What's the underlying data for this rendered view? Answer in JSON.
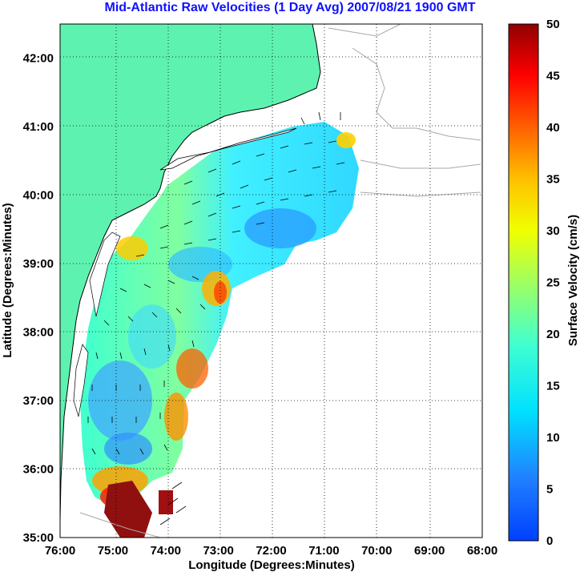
{
  "title": "Mid-Atlantic Raw Velocities (1 Day Avg) 2007/08/21 1900 GMT",
  "colors": {
    "title": "#1010ff",
    "land": "#5ef2b0",
    "coast_outline": "#000000",
    "bathymetry": "#a8a8a8",
    "grid": "#000000"
  },
  "map": {
    "xlabel": "Longitude (Degrees:Minutes)",
    "ylabel": "Latitude (Degrees:Minutes)",
    "lon_ticks": [
      "76:00",
      "75:00",
      "74:00",
      "73:00",
      "72:00",
      "71:00",
      "70:00",
      "69:00",
      "68:00"
    ],
    "lat_ticks": [
      "42:00",
      "41:00",
      "40:00",
      "39:00",
      "38:00",
      "37:00",
      "36:00",
      "35:00"
    ],
    "lon_range": [
      -76,
      -68
    ],
    "lat_range": [
      35,
      42.5
    ]
  },
  "colorbar": {
    "label": "Surface Velocity (cm/s)",
    "ticks": [
      "0",
      "5",
      "10",
      "15",
      "20",
      "25",
      "30",
      "35",
      "40",
      "45",
      "50"
    ],
    "range": [
      0,
      50
    ],
    "colormap": "jet"
  }
}
